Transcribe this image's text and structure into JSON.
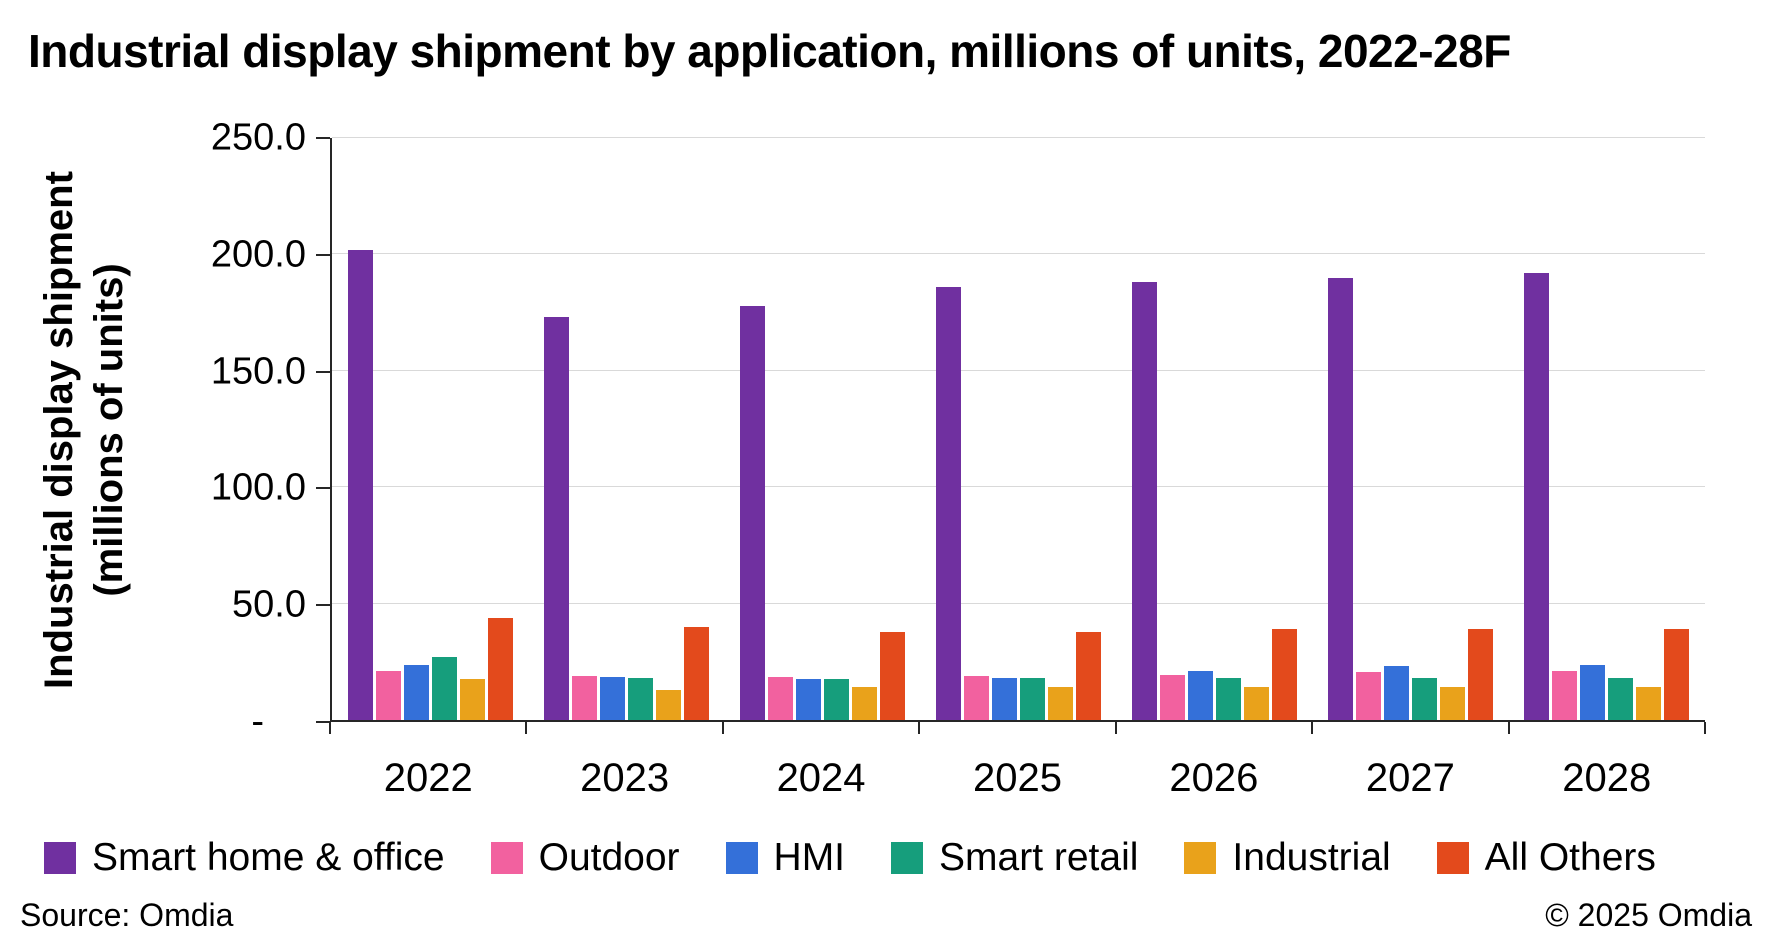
{
  "title": "Industrial display shipment by application, millions of units, 2022-28F",
  "footer": {
    "source": "Source: Omdia",
    "copyright": "© 2025 Omdia"
  },
  "chart_data": {
    "type": "bar",
    "title": "Industrial display shipment by application, millions of units, 2022-28F",
    "categories": [
      "2022",
      "2023",
      "2024",
      "2025",
      "2026",
      "2027",
      "2028"
    ],
    "series": [
      {
        "name": "Smart home & office",
        "color": "#7030A0",
        "values": [
          202,
          173,
          178,
          186,
          188,
          190,
          192
        ]
      },
      {
        "name": "Outdoor",
        "color": "#F2619F",
        "values": [
          21,
          19,
          18.5,
          19,
          19.5,
          20.5,
          21
        ]
      },
      {
        "name": "HMI",
        "color": "#3470D9",
        "values": [
          23.5,
          18.5,
          17.5,
          18,
          21,
          23,
          23.5
        ]
      },
      {
        "name": "Smart retail",
        "color": "#169E7C",
        "values": [
          27,
          18,
          17.5,
          18,
          18,
          18,
          18
        ]
      },
      {
        "name": "Industrial",
        "color": "#E9A21B",
        "values": [
          17.5,
          13,
          14,
          14,
          14,
          14,
          14
        ]
      },
      {
        "name": "All Others",
        "color": "#E34A1C",
        "values": [
          44,
          40,
          38,
          38,
          39,
          39,
          39
        ]
      }
    ],
    "xlabel": "",
    "ylabel_line1": "Industrial display shipment",
    "ylabel_line2": "(millions of units)",
    "ylim": [
      0,
      250
    ],
    "yticks": [
      {
        "value": 0,
        "label": "-"
      },
      {
        "value": 50,
        "label": "50.0"
      },
      {
        "value": 100,
        "label": "100.0"
      },
      {
        "value": 150,
        "label": "150.0"
      },
      {
        "value": 200,
        "label": "200.0"
      },
      {
        "value": 250,
        "label": "250.0"
      }
    ],
    "grid": true,
    "legend_position": "bottom",
    "axis_color": "#262626",
    "gridline_color": "#d9d9d9"
  }
}
